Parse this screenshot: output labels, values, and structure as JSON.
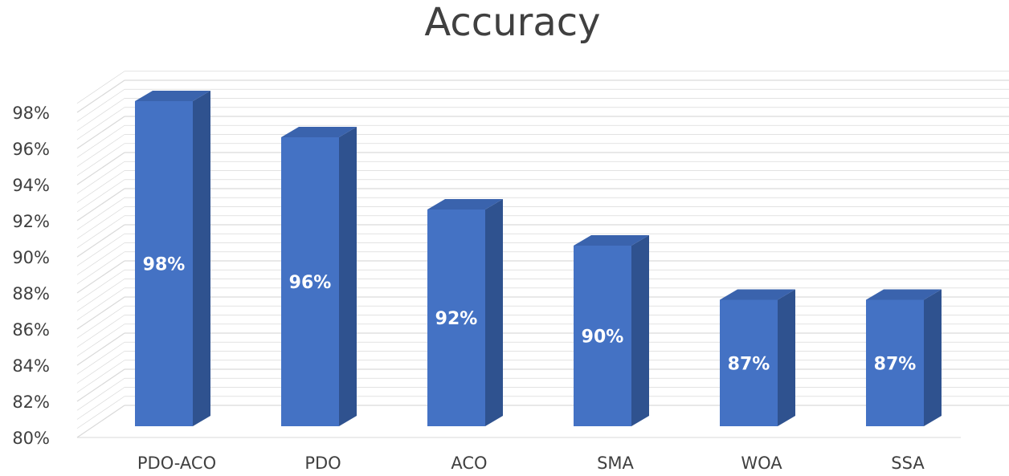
{
  "chart_data": {
    "type": "bar",
    "title": "Accuracy",
    "xlabel": "",
    "ylabel": "",
    "categories": [
      "PDO-ACO",
      "PDO",
      "ACO",
      "SMA",
      "WOA",
      "SSA"
    ],
    "values": [
      98,
      96,
      92,
      90,
      87,
      87
    ],
    "data_labels": [
      "98%",
      "96%",
      "92%",
      "90%",
      "87%",
      "87%"
    ],
    "yticks": [
      "80%",
      "82%",
      "84%",
      "86%",
      "88%",
      "90%",
      "92%",
      "94%",
      "96%",
      "98%"
    ],
    "ylim": [
      80,
      98.7
    ],
    "grid": true,
    "three_d": true,
    "legend": "none",
    "colors": {
      "bar_front": "#4472c4",
      "bar_side": "#2f528f",
      "bar_top": "#3a63ad",
      "grid": "#d9d9d9",
      "text": "#404040"
    }
  }
}
